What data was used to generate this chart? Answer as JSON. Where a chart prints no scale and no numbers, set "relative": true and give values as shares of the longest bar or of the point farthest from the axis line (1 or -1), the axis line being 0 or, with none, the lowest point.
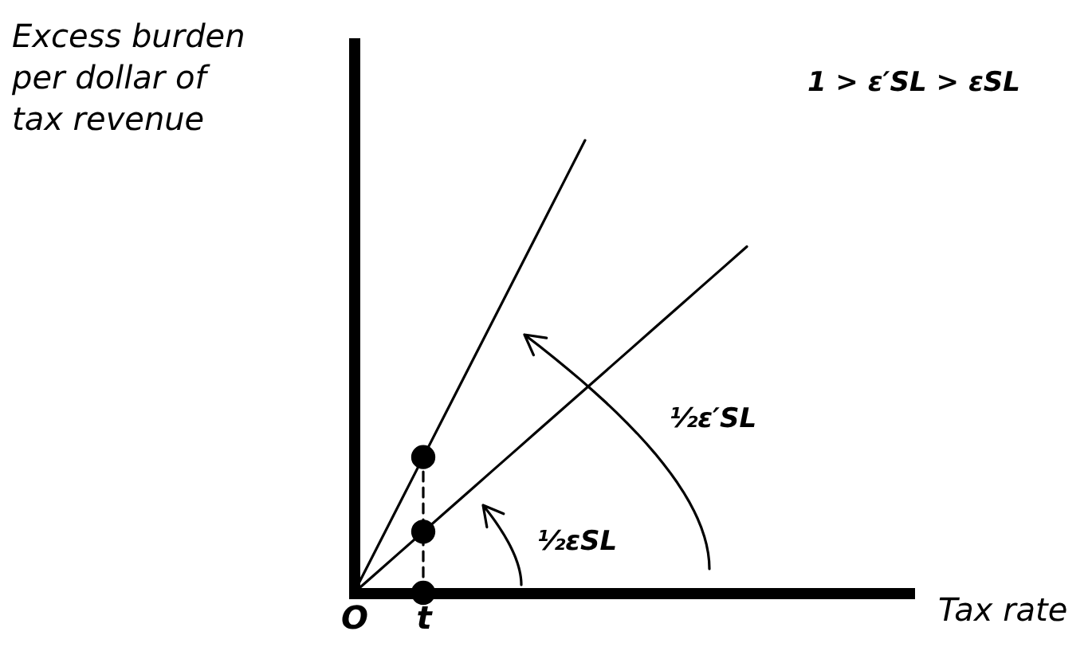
{
  "chart_data": {
    "type": "line",
    "ylabel": "Excess burden per dollar of tax revenue",
    "xlabel": "Tax rate",
    "relative": true,
    "tick_labels": "x",
    "categories": [
      "O",
      null,
      null,
      "t",
      null,
      null,
      null,
      null,
      null,
      null,
      null,
      null,
      null,
      null,
      null,
      null,
      null,
      null,
      null,
      null,
      null,
      null,
      null,
      null,
      null
    ],
    "series": [
      {
        "values": [
          0,
          0.1,
          0.2,
          0.3,
          0.4,
          0.5,
          0.6,
          0.7,
          0.8,
          0.9,
          1,
          null,
          null,
          null,
          null,
          null,
          null,
          null,
          null,
          null,
          null,
          null,
          null,
          null,
          null
        ],
        "color": "#000000"
      },
      {
        "values": [
          0,
          0.045,
          0.09,
          0.135,
          0.18,
          0.225,
          0.27,
          0.315,
          0.36,
          0.405,
          0.45,
          0.495,
          0.54,
          0.585,
          0.63,
          0.675,
          0.72,
          0.765,
          null,
          null,
          null,
          null,
          null,
          null,
          null
        ],
        "color": "#000000"
      },
      {
        "x": [
          "t",
          "t"
        ],
        "values": [
          0,
          0.3
        ],
        "color": "#000000",
        "line_style": "dashed"
      },
      {
        "type": "scatter",
        "x": [
          "t",
          "t",
          "t"
        ],
        "values": [
          0.3,
          0.135,
          0
        ],
        "color": "#000000",
        "marker": "circle"
      }
    ],
    "annotations": [
      "1 > ε′SL > εSL",
      "½ε′SL",
      "½εSL"
    ]
  }
}
